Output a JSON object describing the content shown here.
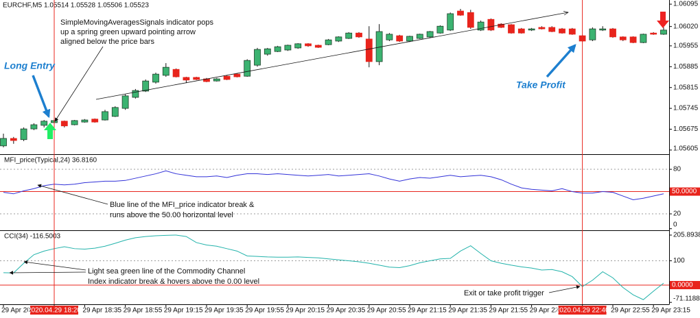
{
  "chart_data": [
    {
      "type": "candlestick",
      "title": "EURCHF,M5  1.05514 1.05528 1.05506 1.05523",
      "categories": [
        "29 Apr 20",
        null,
        null,
        null,
        null,
        "2020.04.29 18:20",
        null,
        null,
        "29 Apr 18:35",
        null,
        null,
        null,
        "29 Apr 18:55",
        null,
        null,
        null,
        "29 Apr 19:15",
        null,
        null,
        null,
        "29 Apr 19:35",
        null,
        null,
        null,
        "29 Apr 19:55",
        null,
        null,
        null,
        "29 Apr 20:15",
        null,
        null,
        null,
        "29 Apr 20:35",
        null,
        null,
        null,
        "29 Apr 20:55",
        null,
        null,
        null,
        "29 Apr 21:15",
        null,
        null,
        null,
        "29 Apr 21:35",
        null,
        null,
        null,
        "29 Apr 21:55",
        null,
        null,
        null,
        "29 Apr 22",
        null,
        null,
        null,
        null,
        "2020.04.29 22:40",
        null,
        null,
        "29 Apr 22:55",
        null,
        null,
        null,
        "29 Apr 23:15",
        null
      ],
      "open": [
        1.05619,
        1.05644,
        1.0564,
        1.05676,
        1.05688,
        1.05697,
        1.05702,
        1.0569,
        1.05699,
        1.05709,
        1.05706,
        1.05718,
        1.05745,
        1.05782,
        1.05803,
        1.05833,
        1.05856,
        1.05876,
        1.05849,
        1.05849,
        1.05844,
        1.05837,
        1.05853,
        1.0586,
        1.05853,
        1.0589,
        1.05927,
        1.05936,
        1.05941,
        1.05948,
        1.05962,
        1.05957,
        1.05959,
        1.05971,
        1.0598,
        1.05998,
        1.05978,
        1.05902,
        1.05975,
        1.05989,
        1.05971,
        1.0598,
        1.05985,
        1.05998,
        1.06008,
        1.06072,
        1.06067,
        1.06008,
        1.06044,
        1.06028,
        1.06026,
        1.06012,
        1.06008,
        1.06017,
        1.06017,
        1.06012,
        1.06012,
        1.05989,
        1.05975,
        1.06008,
        1.06012,
        1.05985,
        1.05985,
        1.05966,
        1.05998,
        1.05994
      ],
      "high": [
        1.0566,
        1.05649,
        1.05681,
        1.05695,
        1.05706,
        1.05709,
        1.05704,
        1.05706,
        1.05709,
        1.05711,
        1.0574,
        1.05752,
        1.05792,
        1.0581,
        1.05842,
        1.05865,
        1.05897,
        1.05879,
        1.05851,
        1.05851,
        1.05847,
        1.05847,
        1.05856,
        1.05863,
        1.0591,
        1.05948,
        1.05948,
        1.05955,
        1.05959,
        1.05964,
        1.05964,
        1.05959,
        1.05978,
        1.05987,
        1.06001,
        1.06001,
        1.06021,
        1.06028,
        1.05998,
        1.05992,
        1.05989,
        1.05996,
        1.06005,
        1.06024,
        1.06067,
        1.06079,
        1.06076,
        1.0604,
        1.06047,
        1.06031,
        1.06028,
        1.06015,
        1.06015,
        1.06021,
        1.06021,
        1.06015,
        1.06015,
        1.05992,
        1.06017,
        1.06021,
        1.06015,
        1.05987,
        1.05987,
        1.05996,
        1.06001,
        1.06017
      ],
      "low": [
        1.05614,
        1.05626,
        1.05635,
        1.05672,
        1.05681,
        1.0569,
        1.05681,
        1.05688,
        1.05697,
        1.05697,
        1.05704,
        1.05716,
        1.0574,
        1.05778,
        1.058,
        1.05828,
        1.05851,
        1.05849,
        1.0583,
        1.0584,
        1.05833,
        1.05835,
        1.0584,
        1.05849,
        1.05851,
        1.05885,
        1.05922,
        1.05934,
        1.05938,
        1.05945,
        1.05952,
        1.05948,
        1.05957,
        1.05968,
        1.05978,
        1.05982,
        1.05883,
        1.0589,
        1.05971,
        1.05968,
        1.05968,
        1.05978,
        1.05982,
        1.05996,
        1.06005,
        1.06056,
        1.06012,
        1.06005,
        1.06005,
        1.06015,
        1.05996,
        1.05996,
        1.06005,
        1.0601,
        1.06001,
        1.05996,
        1.05992,
        1.05968,
        1.05971,
        1.06005,
        1.05982,
        1.05971,
        1.05964,
        1.05964,
        1.05992,
        1.05992
      ],
      "close": [
        1.05644,
        1.05637,
        1.05676,
        1.0569,
        1.05702,
        1.05704,
        1.05686,
        1.05704,
        1.05706,
        1.05699,
        1.05734,
        1.05748,
        1.05787,
        1.05805,
        1.05837,
        1.0586,
        1.05883,
        1.05851,
        1.0584,
        1.05842,
        1.05835,
        1.05844,
        1.05842,
        1.05851,
        1.05906,
        1.05943,
        1.05945,
        1.05952,
        1.05957,
        1.05962,
        1.05955,
        1.0595,
        1.05975,
        1.05985,
        1.05998,
        1.05985,
        1.05902,
        1.06003,
        1.05994,
        1.05971,
        1.05987,
        1.05994,
        1.06003,
        1.06021,
        1.06063,
        1.06058,
        1.06017,
        1.06035,
        1.06008,
        1.06017,
        1.05998,
        1.05998,
        1.06012,
        1.06012,
        1.06003,
        1.05998,
        1.05994,
        1.05971,
        1.06012,
        1.06012,
        1.05985,
        1.05975,
        1.05966,
        1.05994,
        1.05994,
        1.06008
      ],
      "up_color": "#3cb371",
      "down_color": "#e8241c",
      "ylim": [
        1.05591,
        1.06109
      ],
      "yticks": [
        1.06095,
        {
          "value": 1.0602,
          "label": "1.06020"
        },
        1.05955,
        1.05885,
        1.05815,
        1.05745,
        1.05675,
        1.05605
      ]
    },
    {
      "type": "line",
      "title": "MFI_price(Typical,24) 36.8160",
      "series": [
        {
          "color": "#3030d8",
          "values": [
            49,
            47,
            51,
            54,
            58,
            60,
            59,
            60,
            62,
            63,
            64,
            64,
            65,
            68,
            71,
            74,
            78,
            74,
            72,
            70,
            70,
            71,
            69,
            72,
            74,
            74,
            73,
            74,
            73,
            72,
            71,
            72,
            73,
            71,
            72,
            73,
            74,
            71,
            67,
            64,
            67,
            69,
            68,
            70,
            72,
            70,
            71,
            72,
            70,
            66,
            60,
            55,
            53,
            52,
            51,
            54,
            50,
            48,
            48,
            50,
            49,
            44,
            39,
            41,
            44,
            47
          ]
        }
      ],
      "ylim": [
        0,
        100
      ],
      "yticks": [
        80,
        20,
        0
      ],
      "grid": true,
      "level": {
        "value": 50,
        "label": "50.0000"
      },
      "level_color": "#e8241c"
    },
    {
      "type": "line",
      "title": "CCI(34) -116.5003",
      "series": [
        {
          "color": "#20b2aa",
          "values": [
            51,
            50,
            90,
            125,
            140,
            150,
            158,
            150,
            148,
            152,
            160,
            172,
            185,
            195,
            200,
            203,
            205,
            206,
            200,
            175,
            165,
            160,
            150,
            140,
            120,
            118,
            116,
            115,
            115,
            116,
            114,
            112,
            108,
            104,
            100,
            96,
            90,
            82,
            74,
            72,
            80,
            92,
            100,
            108,
            110,
            140,
            162,
            130,
            100,
            90,
            82,
            75,
            70,
            62,
            64,
            55,
            35,
            -6,
            20,
            55,
            30,
            -10,
            -40,
            -60,
            -25,
            8
          ]
        }
      ],
      "ylim": [
        -71.1188,
        205.8938
      ],
      "yticks": [
        205.8938,
        100,
        -71.1188
      ],
      "grid": true,
      "level": {
        "value": 0,
        "label": "0.0000"
      },
      "level_color": "#e8241c"
    }
  ],
  "annotations": {
    "signal_note": [
      "SimpleMovingAveragesSignals indicator pops",
      "up a spring green upward pointing arrow",
      "aligned below the price bars"
    ],
    "long_entry": "Long Entry",
    "take_profit": "Take Profit",
    "mfi_note": [
      "Blue line of the MFI_price indicator break &",
      "runs above the 50.00 horizontal level"
    ],
    "cci_note": [
      "Light sea green line of the Commodity Channel",
      "Index indicator break & hovers above the 0.00 level"
    ],
    "exit_note": "Exit or take profit trigger"
  }
}
